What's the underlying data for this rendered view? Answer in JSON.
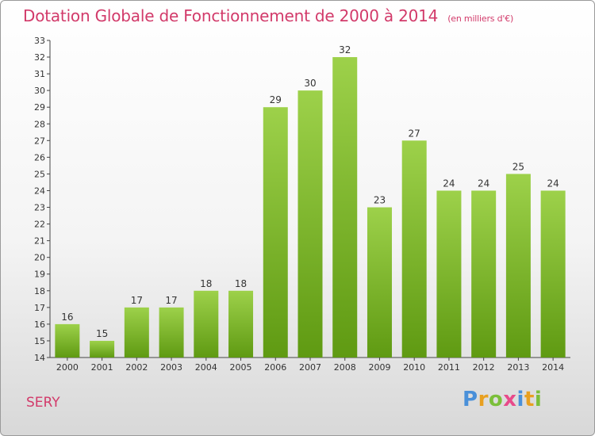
{
  "title": "Dotation Globale de Fonctionnement de 2000 à 2014",
  "unit_note": "(en milliers d'€)",
  "footer_label": "SERY",
  "brand": {
    "letters": [
      "P",
      "r",
      "o",
      "x",
      "i",
      "t",
      "i"
    ],
    "colors": [
      "#4a90d9",
      "#e8a020",
      "#7bbf3a",
      "#e84a8a",
      "#4a90d9",
      "#e8a020",
      "#7bbf3a"
    ]
  },
  "colors": {
    "bar_top": "#9dd14a",
    "bar_bottom": "#5f9a12",
    "title": "#d23a6a",
    "axis": "#444444"
  },
  "chart_data": {
    "type": "bar",
    "title": "Dotation Globale de Fonctionnement de 2000 à 2014",
    "unit": "(en milliers d'€)",
    "categories": [
      "2000",
      "2001",
      "2002",
      "2003",
      "2004",
      "2005",
      "2006",
      "2007",
      "2008",
      "2009",
      "2010",
      "2011",
      "2012",
      "2013",
      "2014"
    ],
    "values": [
      16,
      15,
      17,
      17,
      18,
      18,
      29,
      30,
      32,
      23,
      27,
      24,
      24,
      25,
      24
    ],
    "ylim": [
      14,
      33
    ],
    "yticks": [
      14,
      15,
      16,
      17,
      18,
      19,
      20,
      21,
      22,
      23,
      24,
      25,
      26,
      27,
      28,
      29,
      30,
      31,
      32,
      33
    ],
    "grid": false,
    "data_labels": true,
    "xlabel": "",
    "ylabel": ""
  }
}
